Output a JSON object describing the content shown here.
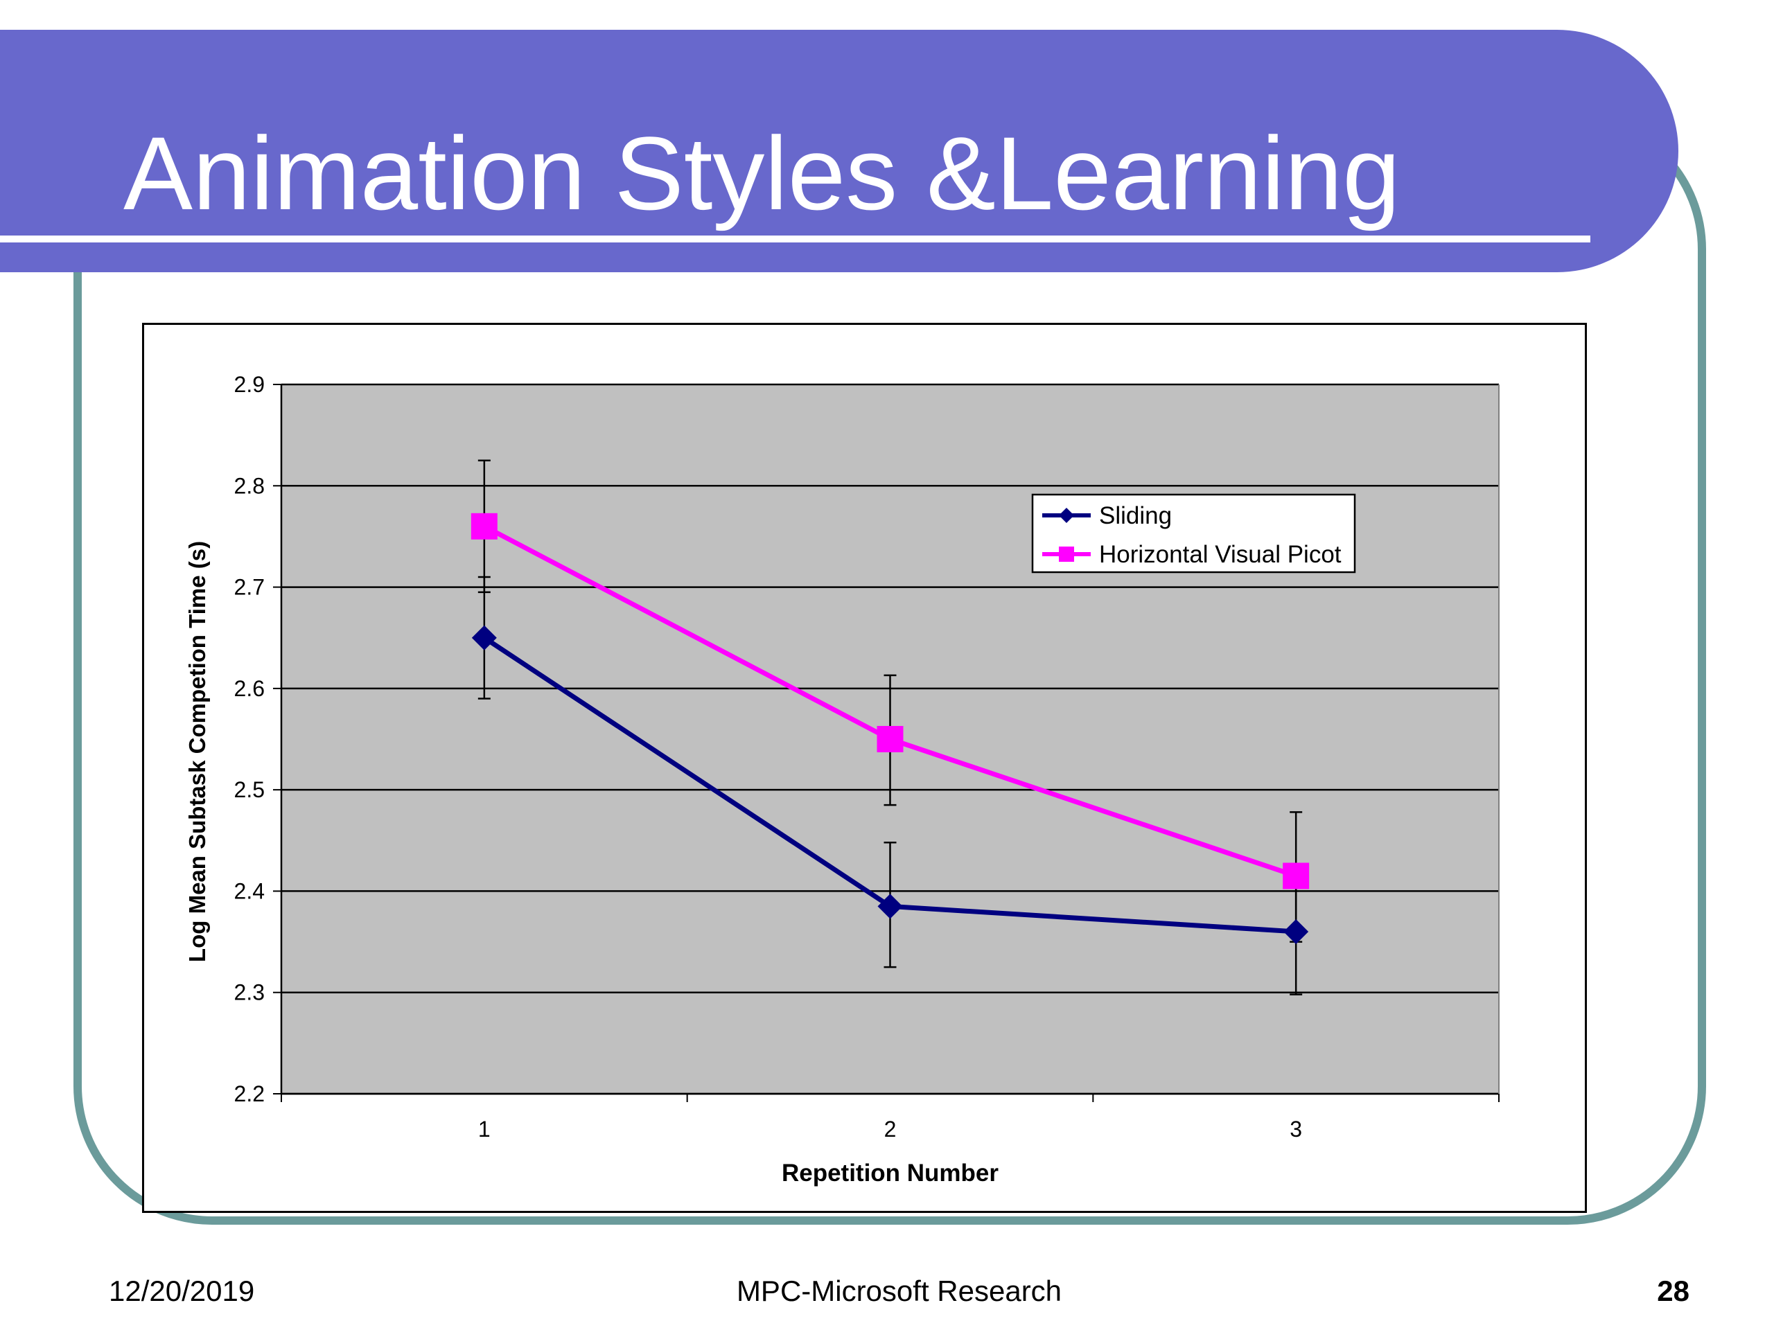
{
  "slide": {
    "title": "Animation Styles &Learning",
    "footer_date": "12/20/2019",
    "footer_center": "MPC-Microsoft Research",
    "page_number": "28"
  },
  "colors": {
    "banner": "#6868CC",
    "frame": "#6B9B9B",
    "plot_background": "#C0C0C0",
    "sliding": "#000080",
    "horizontal_visual_picot": "#FF00FF"
  },
  "chart_data": {
    "type": "line",
    "title": "",
    "xlabel": "Repetition Number",
    "ylabel": "Log Mean Subtask Competion Time (s)",
    "categories": [
      "1",
      "2",
      "3"
    ],
    "ylim": [
      2.2,
      2.9
    ],
    "yticks": [
      "2.2",
      "2.3",
      "2.4",
      "2.5",
      "2.6",
      "2.7",
      "2.8",
      "2.9"
    ],
    "grid": true,
    "legend_position": "top-right",
    "series": [
      {
        "name": "Sliding",
        "color": "#000080",
        "marker": "diamond",
        "values": [
          2.65,
          2.385,
          2.36
        ],
        "error_low": [
          2.59,
          2.325,
          2.298
        ],
        "error_high": [
          2.71,
          2.448,
          2.42
        ]
      },
      {
        "name": "Horizontal Visual Picot",
        "color": "#FF00FF",
        "marker": "square",
        "values": [
          2.76,
          2.55,
          2.415
        ],
        "error_low": [
          2.695,
          2.485,
          2.35
        ],
        "error_high": [
          2.825,
          2.613,
          2.478
        ]
      }
    ]
  }
}
